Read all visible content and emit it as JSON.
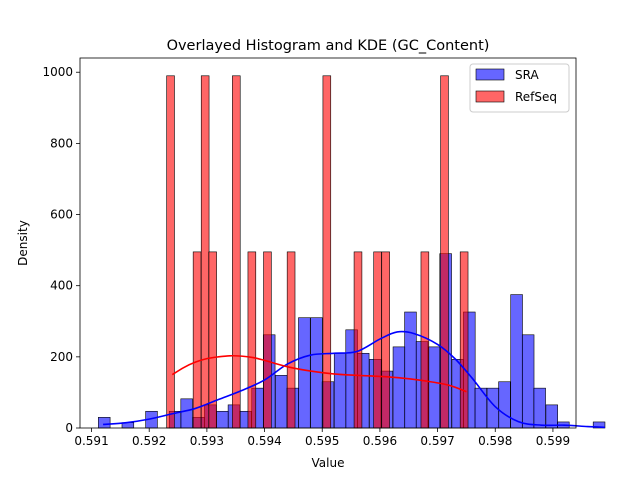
{
  "chart_data": {
    "type": "bar",
    "title": "Overlayed Histogram and KDE (GC_Content)",
    "xlabel": "Value",
    "ylabel": "Density",
    "xlim": [
      0.5908,
      0.5994
    ],
    "ylim": [
      0,
      1040
    ],
    "xticks": [
      "0.591",
      "0.592",
      "0.593",
      "0.594",
      "0.595",
      "0.596",
      "0.597",
      "0.598",
      "0.599"
    ],
    "yticks": [
      "0",
      "200",
      "400",
      "600",
      "800",
      "1000"
    ],
    "legend_position": "top-right",
    "series": [
      {
        "name": "SRA",
        "color": "#0000ff",
        "bin_width": 0.000204,
        "bins": [
          {
            "x": 0.59122,
            "value": 30
          },
          {
            "x": 0.59163,
            "value": 15
          },
          {
            "x": 0.59204,
            "value": 47
          },
          {
            "x": 0.59245,
            "value": 47
          },
          {
            "x": 0.59265,
            "value": 82
          },
          {
            "x": 0.59286,
            "value": 30
          },
          {
            "x": 0.59306,
            "value": 65
          },
          {
            "x": 0.59327,
            "value": 47
          },
          {
            "x": 0.59347,
            "value": 65
          },
          {
            "x": 0.59367,
            "value": 47
          },
          {
            "x": 0.59388,
            "value": 112
          },
          {
            "x": 0.59408,
            "value": 262
          },
          {
            "x": 0.59429,
            "value": 148
          },
          {
            "x": 0.59449,
            "value": 112
          },
          {
            "x": 0.59469,
            "value": 310
          },
          {
            "x": 0.5949,
            "value": 310
          },
          {
            "x": 0.5951,
            "value": 130
          },
          {
            "x": 0.59531,
            "value": 210
          },
          {
            "x": 0.59551,
            "value": 276
          },
          {
            "x": 0.59571,
            "value": 210
          },
          {
            "x": 0.59592,
            "value": 193
          },
          {
            "x": 0.59612,
            "value": 160
          },
          {
            "x": 0.59633,
            "value": 228
          },
          {
            "x": 0.59653,
            "value": 326
          },
          {
            "x": 0.59673,
            "value": 243
          },
          {
            "x": 0.59694,
            "value": 228
          },
          {
            "x": 0.59714,
            "value": 490
          },
          {
            "x": 0.59735,
            "value": 193
          },
          {
            "x": 0.59755,
            "value": 326
          },
          {
            "x": 0.59775,
            "value": 112
          },
          {
            "x": 0.59796,
            "value": 112
          },
          {
            "x": 0.59816,
            "value": 130
          },
          {
            "x": 0.59837,
            "value": 375
          },
          {
            "x": 0.59857,
            "value": 262
          },
          {
            "x": 0.59877,
            "value": 112
          },
          {
            "x": 0.59898,
            "value": 65
          },
          {
            "x": 0.59918,
            "value": 17
          },
          {
            "x": 0.5998,
            "value": 17
          }
        ]
      },
      {
        "name": "RefSeq",
        "color": "#ff0000",
        "bin_width": 0.000136,
        "bins": [
          {
            "x": 0.59237,
            "value": 990
          },
          {
            "x": 0.59283,
            "value": 495
          },
          {
            "x": 0.59297,
            "value": 990
          },
          {
            "x": 0.5931,
            "value": 495
          },
          {
            "x": 0.59351,
            "value": 990
          },
          {
            "x": 0.59378,
            "value": 495
          },
          {
            "x": 0.59405,
            "value": 495
          },
          {
            "x": 0.59446,
            "value": 495
          },
          {
            "x": 0.59508,
            "value": 990
          },
          {
            "x": 0.59562,
            "value": 495
          },
          {
            "x": 0.59596,
            "value": 495
          },
          {
            "x": 0.5961,
            "value": 495
          },
          {
            "x": 0.59678,
            "value": 495
          },
          {
            "x": 0.59712,
            "value": 990
          },
          {
            "x": 0.59746,
            "value": 495
          }
        ]
      }
    ],
    "kde": [
      {
        "name": "SRA",
        "color": "#0000ff",
        "x": [
          0.5912,
          0.5916,
          0.592,
          0.5924,
          0.5928,
          0.5932,
          0.5936,
          0.594,
          0.5944,
          0.5948,
          0.5952,
          0.5956,
          0.596,
          0.5963,
          0.5966,
          0.597,
          0.5973,
          0.5976,
          0.598,
          0.5984,
          0.5988,
          0.5992,
          0.5996,
          0.5999
        ],
        "y": [
          10,
          15,
          25,
          40,
          55,
          80,
          105,
          135,
          180,
          205,
          210,
          215,
          250,
          270,
          265,
          235,
          195,
          140,
          60,
          18,
          8,
          8,
          4,
          2
        ]
      },
      {
        "name": "RefSeq",
        "color": "#ff0000",
        "x": [
          0.5924,
          0.5926,
          0.5928,
          0.593,
          0.5932,
          0.5934,
          0.5936,
          0.5938,
          0.594,
          0.5944,
          0.5948,
          0.5952,
          0.5956,
          0.596,
          0.5964,
          0.5968,
          0.5972,
          0.5975
        ],
        "y": [
          150,
          170,
          185,
          195,
          200,
          203,
          202,
          198,
          190,
          172,
          160,
          152,
          148,
          145,
          140,
          132,
          120,
          102
        ]
      }
    ]
  }
}
